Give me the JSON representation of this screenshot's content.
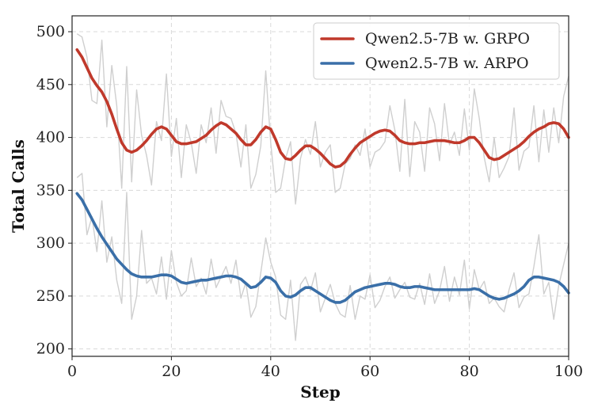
{
  "chart_data": {
    "type": "line",
    "title": "",
    "xlabel": "Step",
    "ylabel": "Total Calls",
    "xlim": [
      0,
      100
    ],
    "ylim": [
      193,
      515
    ],
    "xticks": [
      0,
      20,
      40,
      60,
      80,
      100
    ],
    "yticks": [
      200,
      250,
      300,
      350,
      400,
      450,
      500
    ],
    "grid": true,
    "legend_position": "top-right",
    "series": [
      {
        "name": "Qwen2.5-7B w. GRPO",
        "color": "#c0392b",
        "x": [
          1,
          2,
          3,
          4,
          5,
          6,
          7,
          8,
          9,
          10,
          11,
          12,
          13,
          14,
          15,
          16,
          17,
          18,
          19,
          20,
          21,
          22,
          23,
          24,
          25,
          26,
          27,
          28,
          29,
          30,
          31,
          32,
          33,
          34,
          35,
          36,
          37,
          38,
          39,
          40,
          41,
          42,
          43,
          44,
          45,
          46,
          47,
          48,
          49,
          50,
          51,
          52,
          53,
          54,
          55,
          56,
          57,
          58,
          59,
          60,
          61,
          62,
          63,
          64,
          65,
          66,
          67,
          68,
          69,
          70,
          71,
          72,
          73,
          74,
          75,
          76,
          77,
          78,
          79,
          80,
          81,
          82,
          83,
          84,
          85,
          86,
          87,
          88,
          89,
          90,
          91,
          92,
          93,
          94,
          95,
          96,
          97,
          98,
          99,
          100
        ],
        "values": [
          483,
          476,
          466,
          456,
          449,
          443,
          434,
          422,
          408,
          395,
          388,
          386,
          388,
          392,
          397,
          403,
          408,
          410,
          408,
          402,
          396,
          394,
          394,
          395,
          396,
          399,
          402,
          407,
          411,
          414,
          412,
          408,
          404,
          398,
          393,
          393,
          398,
          405,
          410,
          408,
          398,
          386,
          380,
          379,
          383,
          388,
          392,
          392,
          389,
          385,
          380,
          375,
          372,
          373,
          377,
          384,
          390,
          395,
          398,
          401,
          404,
          406,
          407,
          406,
          402,
          397,
          395,
          394,
          394,
          395,
          395,
          396,
          397,
          397,
          397,
          396,
          395,
          395,
          397,
          400,
          400,
          395,
          388,
          381,
          379,
          380,
          383,
          386,
          389,
          392,
          396,
          401,
          405,
          408,
          410,
          413,
          414,
          413,
          408,
          400
        ]
      },
      {
        "name": "Qwen2.5-7B w. ARPO",
        "color": "#3a6fa8",
        "x": [
          1,
          2,
          3,
          4,
          5,
          6,
          7,
          8,
          9,
          10,
          11,
          12,
          13,
          14,
          15,
          16,
          17,
          18,
          19,
          20,
          21,
          22,
          23,
          24,
          25,
          26,
          27,
          28,
          29,
          30,
          31,
          32,
          33,
          34,
          35,
          36,
          37,
          38,
          39,
          40,
          41,
          42,
          43,
          44,
          45,
          46,
          47,
          48,
          49,
          50,
          51,
          52,
          53,
          54,
          55,
          56,
          57,
          58,
          59,
          60,
          61,
          62,
          63,
          64,
          65,
          66,
          67,
          68,
          69,
          70,
          71,
          72,
          73,
          74,
          75,
          76,
          77,
          78,
          79,
          80,
          81,
          82,
          83,
          84,
          85,
          86,
          87,
          88,
          89,
          90,
          91,
          92,
          93,
          94,
          95,
          96,
          97,
          98,
          99,
          100
        ],
        "values": [
          347,
          341,
          332,
          323,
          314,
          306,
          299,
          292,
          285,
          280,
          275,
          271,
          269,
          268,
          268,
          268,
          269,
          270,
          270,
          269,
          266,
          263,
          262,
          263,
          264,
          265,
          265,
          266,
          267,
          268,
          269,
          269,
          268,
          266,
          262,
          258,
          259,
          263,
          268,
          267,
          263,
          255,
          250,
          249,
          251,
          255,
          258,
          258,
          255,
          252,
          249,
          246,
          244,
          244,
          246,
          250,
          254,
          256,
          258,
          259,
          260,
          261,
          262,
          262,
          261,
          259,
          258,
          258,
          259,
          259,
          258,
          257,
          256,
          256,
          256,
          256,
          256,
          256,
          256,
          256,
          257,
          256,
          253,
          250,
          248,
          247,
          248,
          250,
          252,
          255,
          259,
          265,
          268,
          268,
          267,
          266,
          265,
          263,
          259,
          253
        ]
      }
    ],
    "raw_traces": [
      {
        "name": "GRPO raw",
        "color": "#cfcfcf",
        "values": [
          498,
          495,
          476,
          435,
          432,
          492,
          410,
          468,
          430,
          352,
          467,
          358,
          445,
          402,
          383,
          355,
          415,
          397,
          460,
          382,
          418,
          362,
          412,
          395,
          366,
          412,
          395,
          428,
          385,
          435,
          420,
          418,
          404,
          372,
          412,
          352,
          365,
          392,
          463,
          395,
          348,
          352,
          380,
          396,
          337,
          380,
          398,
          384,
          415,
          372,
          386,
          393,
          348,
          352,
          375,
          380,
          393,
          383,
          408,
          372,
          386,
          389,
          396,
          430,
          407,
          368,
          436,
          363,
          415,
          405,
          368,
          428,
          413,
          378,
          432,
          393,
          405,
          383,
          427,
          388,
          446,
          418,
          381,
          358,
          400,
          362,
          371,
          382,
          428,
          369,
          387,
          391,
          430,
          377,
          426,
          386,
          428,
          395,
          439,
          458
        ]
      },
      {
        "name": "ARPO raw",
        "color": "#cfcfcf",
        "values": [
          362,
          366,
          308,
          325,
          292,
          340,
          282,
          306,
          265,
          243,
          348,
          228,
          250,
          312,
          262,
          267,
          252,
          287,
          247,
          293,
          263,
          250,
          255,
          286,
          259,
          267,
          252,
          285,
          258,
          268,
          278,
          262,
          284,
          248,
          263,
          230,
          240,
          272,
          305,
          282,
          268,
          232,
          228,
          265,
          208,
          261,
          268,
          255,
          272,
          235,
          248,
          261,
          243,
          233,
          230,
          260,
          228,
          250,
          247,
          270,
          239,
          246,
          259,
          268,
          248,
          256,
          263,
          249,
          247,
          262,
          242,
          271,
          243,
          255,
          278,
          245,
          268,
          251,
          284,
          238,
          275,
          256,
          264,
          243,
          248,
          240,
          235,
          256,
          272,
          239,
          249,
          252,
          278,
          308,
          252,
          263,
          228,
          260,
          280,
          300
        ]
      }
    ]
  }
}
